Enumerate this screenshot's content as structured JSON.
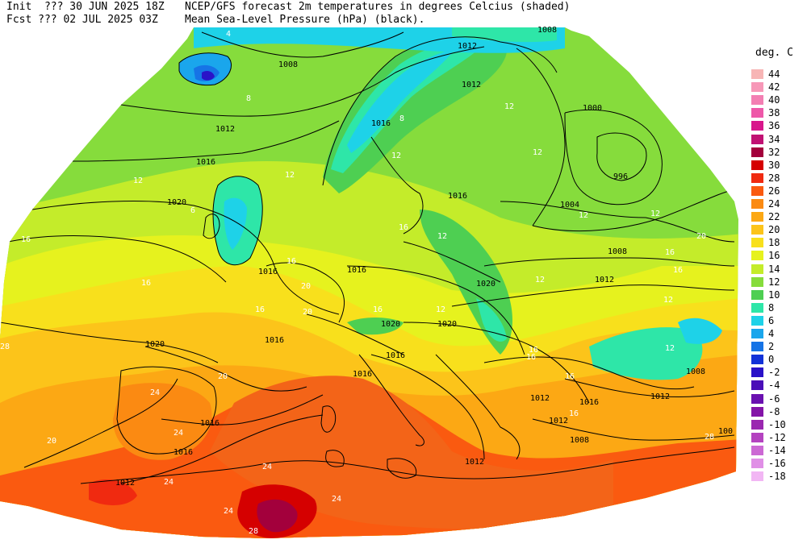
{
  "header": {
    "init_prefix": "Init  ??? 30 JUN 2025 18Z",
    "fcst_prefix": "Fcst ??? 02 JUL 2025 03Z",
    "title_line1": "NCEP/GFS forecast 2m temperatures in degrees Celcius (shaded)",
    "title_line2": "Mean Sea-Level Pressure (hPa) (black)."
  },
  "legend": {
    "title": "deg. C",
    "levels": [
      {
        "label": "44",
        "color": "#f7b5b5"
      },
      {
        "label": "42",
        "color": "#f798b8"
      },
      {
        "label": "40",
        "color": "#f37fb3"
      },
      {
        "label": "38",
        "color": "#ee58a9"
      },
      {
        "label": "36",
        "color": "#d8168c"
      },
      {
        "label": "34",
        "color": "#c11173"
      },
      {
        "label": "32",
        "color": "#a3003c"
      },
      {
        "label": "30",
        "color": "#d50000"
      },
      {
        "label": "28",
        "color": "#f02a10"
      },
      {
        "label": "26",
        "color": "#fa5a10"
      },
      {
        "label": "24",
        "color": "#fb8a12"
      },
      {
        "label": "22",
        "color": "#fca814"
      },
      {
        "label": "20",
        "color": "#fcc41a"
      },
      {
        "label": "18",
        "color": "#f8e01c"
      },
      {
        "label": "16",
        "color": "#e6f21e"
      },
      {
        "label": "14",
        "color": "#c4ec2a"
      },
      {
        "label": "12",
        "color": "#86dc3c"
      },
      {
        "label": "10",
        "color": "#4ecf52"
      },
      {
        "label": "8",
        "color": "#2ee6a8"
      },
      {
        "label": "6",
        "color": "#1ed2e8"
      },
      {
        "label": "4",
        "color": "#1aa6ec"
      },
      {
        "label": "2",
        "color": "#1674e6"
      },
      {
        "label": "0",
        "color": "#1232d8"
      },
      {
        "label": "-2",
        "color": "#2a12c8"
      },
      {
        "label": "-4",
        "color": "#4a0eb8"
      },
      {
        "label": "-6",
        "color": "#6a10b0"
      },
      {
        "label": "-8",
        "color": "#8414a8"
      },
      {
        "label": "-10",
        "color": "#9a28b0"
      },
      {
        "label": "-12",
        "color": "#b443c0"
      },
      {
        "label": "-14",
        "color": "#cc68d4"
      },
      {
        "label": "-16",
        "color": "#e08fe6"
      },
      {
        "label": "-18",
        "color": "#f2b6f4"
      }
    ]
  },
  "map": {
    "isobar_labels": [
      "1008",
      "1012",
      "1016",
      "1020",
      "1016",
      "1012",
      "1000",
      "996",
      "1004",
      "1008",
      "1012",
      "1016",
      "1020",
      "1016",
      "1016",
      "1020",
      "1020",
      "1016",
      "1016",
      "1016",
      "1012",
      "1012",
      "1012",
      "1008",
      "1016",
      "1012",
      "1008",
      "1012",
      "1016",
      "1020",
      "1008",
      "100",
      "1012",
      "1012"
    ],
    "temp_labels": [
      "4",
      "8",
      "12",
      "12",
      "16",
      "16",
      "12",
      "12",
      "12",
      "16",
      "16",
      "16",
      "20",
      "16",
      "12",
      "16",
      "12",
      "16",
      "12",
      "16",
      "16",
      "12",
      "20",
      "24",
      "20",
      "24",
      "24",
      "24",
      "20",
      "24",
      "28",
      "28",
      "24",
      "28",
      "12",
      "16",
      "20",
      "16",
      "12",
      "8",
      "6",
      "12",
      "28"
    ]
  }
}
